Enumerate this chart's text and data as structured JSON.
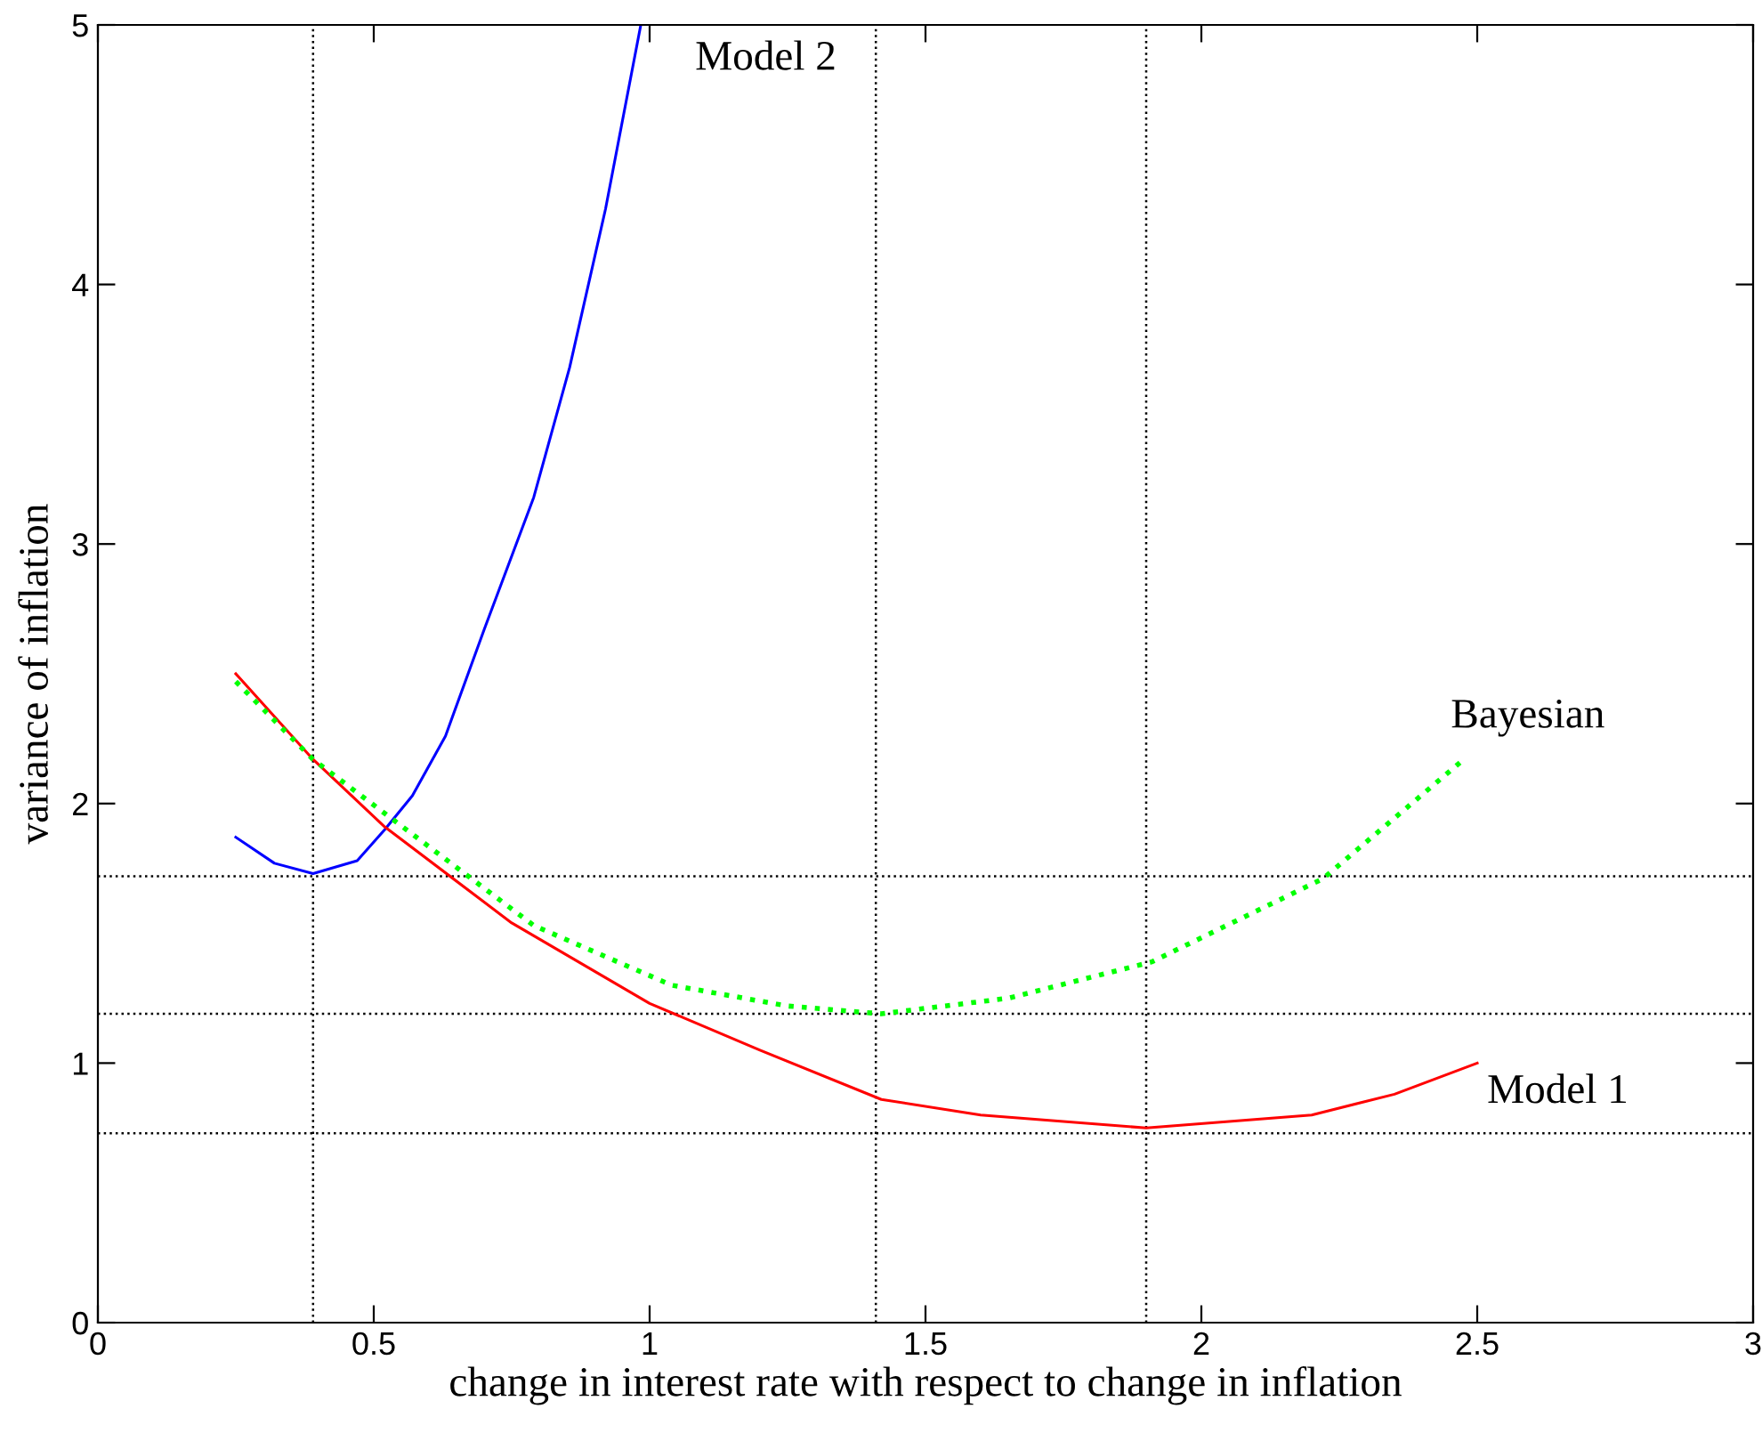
{
  "chart_data": {
    "type": "line",
    "xlabel": "change in interest rate with respect to change in inflation",
    "ylabel": "variance of inflation",
    "xlim": [
      0,
      3
    ],
    "ylim": [
      0,
      5
    ],
    "xticks": [
      0,
      0.5,
      1,
      1.5,
      2,
      2.5,
      3
    ],
    "yticks": [
      0,
      1,
      2,
      3,
      4,
      5
    ],
    "grid": false,
    "marker": "none",
    "series": [
      {
        "name": "Model 2",
        "color": "#0000ff",
        "line_style": "solid",
        "x": [
          0.25,
          0.32,
          0.39,
          0.47,
          0.52,
          0.57,
          0.63,
          0.7,
          0.79,
          0.855,
          0.92,
          0.984
        ],
        "values": [
          1.87,
          1.77,
          1.73,
          1.78,
          1.9,
          2.03,
          2.26,
          2.67,
          3.18,
          3.68,
          4.29,
          5.0
        ]
      },
      {
        "name": "Model 1",
        "color": "#ff0000",
        "line_style": "solid",
        "x": [
          0.25,
          0.39,
          0.52,
          0.75,
          1.0,
          1.2,
          1.42,
          1.6,
          1.9,
          2.2,
          2.35,
          2.5
        ],
        "values": [
          2.5,
          2.17,
          1.91,
          1.54,
          1.23,
          1.05,
          0.86,
          0.8,
          0.75,
          0.8,
          0.88,
          1.0
        ]
      },
      {
        "name": "Bayesian",
        "color": "#00ff00",
        "line_style": "dotted",
        "x": [
          0.25,
          0.39,
          0.54,
          0.79,
          1.04,
          1.25,
          1.42,
          1.65,
          1.91,
          2.22,
          2.47
        ],
        "values": [
          2.47,
          2.17,
          1.93,
          1.53,
          1.3,
          1.22,
          1.19,
          1.25,
          1.39,
          1.71,
          2.16
        ]
      }
    ],
    "ref_lines": [
      {
        "axis": "x",
        "value": 0.39,
        "color": "#000000",
        "line_style": "dotted"
      },
      {
        "axis": "x",
        "value": 1.41,
        "color": "#000000",
        "line_style": "dotted"
      },
      {
        "axis": "x",
        "value": 1.9,
        "color": "#000000",
        "line_style": "dotted"
      },
      {
        "axis": "y",
        "value": 1.72,
        "color": "#000000",
        "line_style": "dotted"
      },
      {
        "axis": "y",
        "value": 1.19,
        "color": "#000000",
        "line_style": "dotted"
      },
      {
        "axis": "y",
        "value": 0.73,
        "color": "#000000",
        "line_style": "dotted"
      }
    ],
    "legend": false
  }
}
